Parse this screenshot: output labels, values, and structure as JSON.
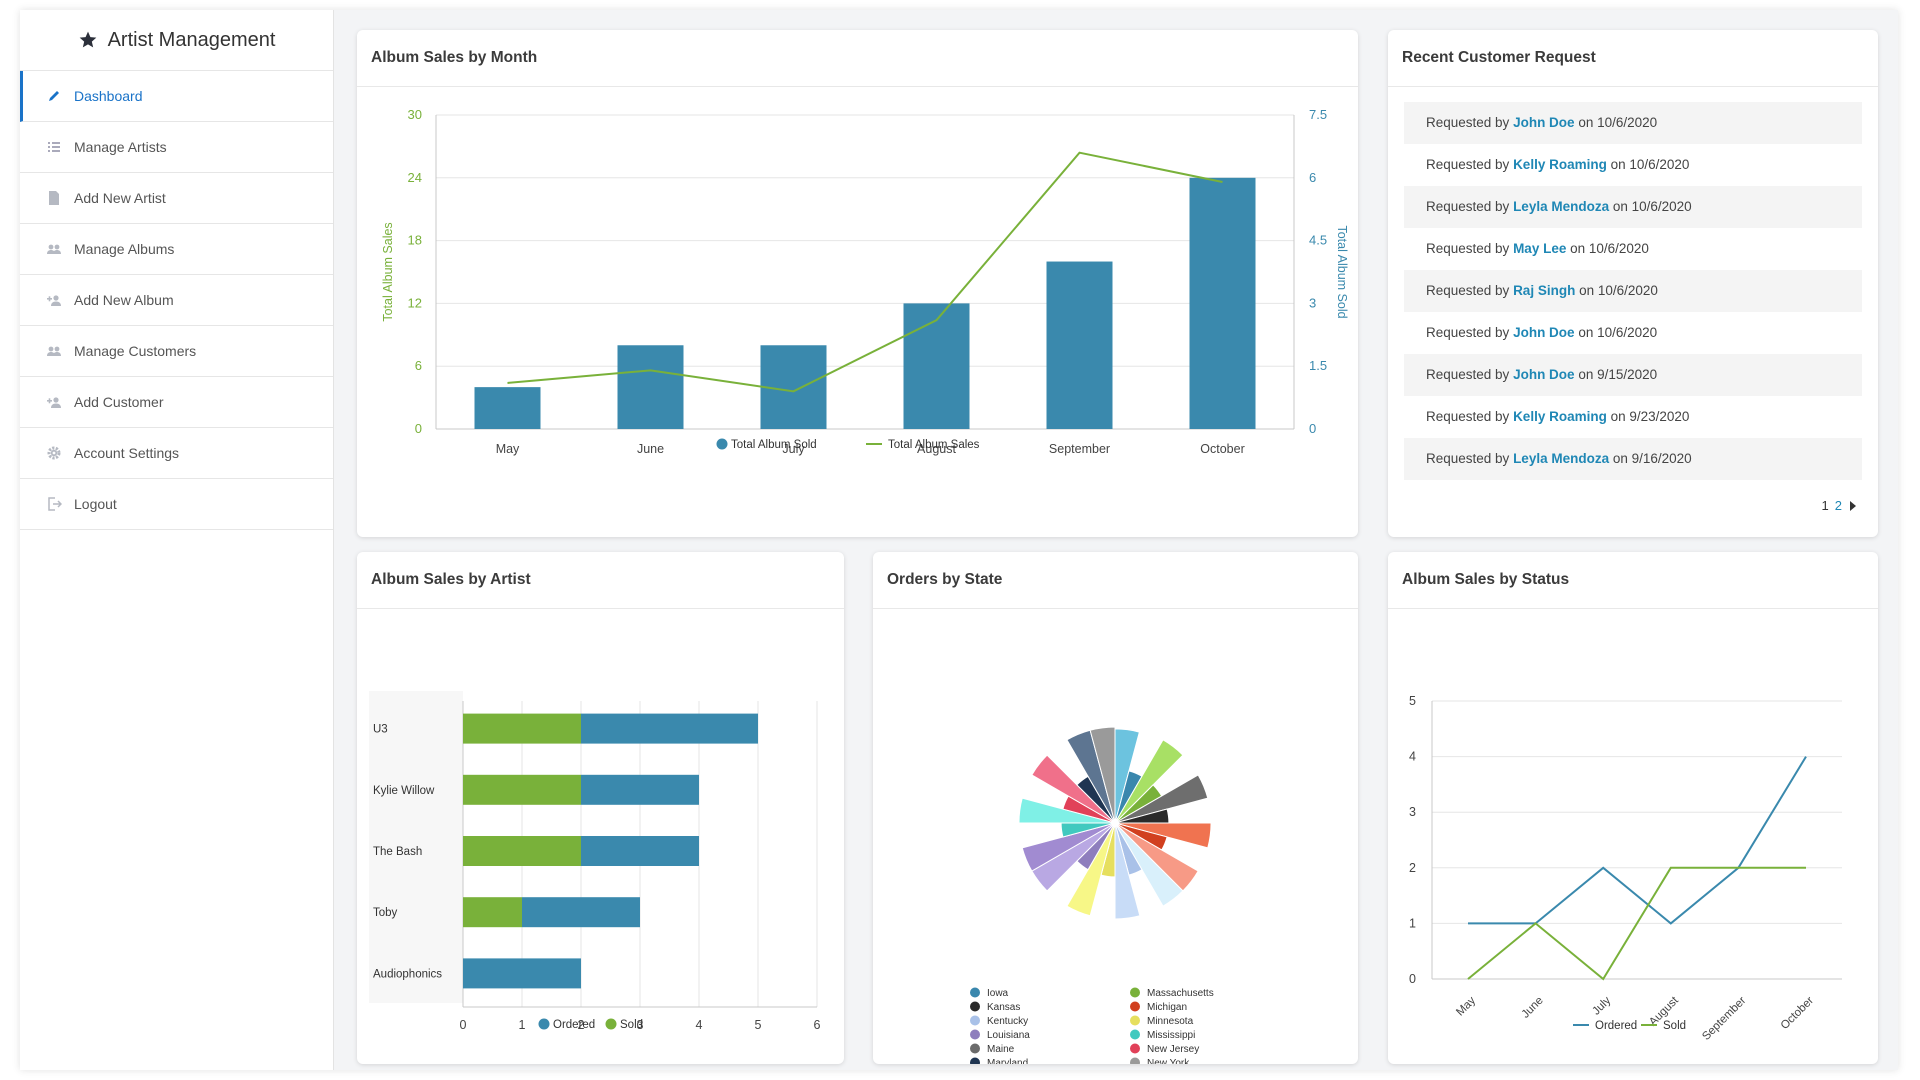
{
  "app": {
    "title": "Artist Management"
  },
  "sidebar": {
    "items": [
      {
        "label": "Dashboard",
        "icon": "pencil-icon",
        "active": true
      },
      {
        "label": "Manage Artists",
        "icon": "list-icon"
      },
      {
        "label": "Add New Artist",
        "icon": "document-icon"
      },
      {
        "label": "Manage Albums",
        "icon": "users-icon"
      },
      {
        "label": "Add New Album",
        "icon": "add-user-icon"
      },
      {
        "label": "Manage Customers",
        "icon": "users-icon"
      },
      {
        "label": "Add Customer",
        "icon": "add-user-icon"
      },
      {
        "label": "Account Settings",
        "icon": "gear-icon"
      },
      {
        "label": "Logout",
        "icon": "logout-icon"
      }
    ]
  },
  "cards": {
    "month": {
      "title": "Album Sales by Month"
    },
    "requests": {
      "title": "Recent Customer Request"
    },
    "artist": {
      "title": "Album Sales by Artist"
    },
    "state": {
      "title": "Orders by State"
    },
    "status": {
      "title": "Album Sales by Status"
    }
  },
  "requests": {
    "prefix": "Requested by",
    "on": "on",
    "items": [
      {
        "name": "John Doe",
        "date": "10/6/2020"
      },
      {
        "name": "Kelly Roaming",
        "date": "10/6/2020"
      },
      {
        "name": "Leyla Mendoza",
        "date": "10/6/2020"
      },
      {
        "name": "May Lee",
        "date": "10/6/2020"
      },
      {
        "name": "Raj Singh",
        "date": "10/6/2020"
      },
      {
        "name": "John Doe",
        "date": "10/6/2020"
      },
      {
        "name": "John Doe",
        "date": "9/15/2020"
      },
      {
        "name": "Kelly Roaming",
        "date": "9/23/2020"
      },
      {
        "name": "Leyla Mendoza",
        "date": "9/16/2020"
      }
    ],
    "pages": [
      "1",
      "2"
    ]
  },
  "colors": {
    "blue": "#3a89ad",
    "green": "#79b13a",
    "accent": "#1a73c8"
  },
  "chart_data": [
    {
      "type": "bar",
      "categories": [
        "May",
        "June",
        "July",
        "August",
        "September",
        "October"
      ],
      "series": [
        {
          "name": "Total Album Sold",
          "kind": "bar",
          "axis": "left",
          "values": [
            4,
            8,
            8,
            12,
            16,
            24
          ]
        },
        {
          "name": "Total Album Sales",
          "kind": "line",
          "axis": "right",
          "values": [
            1.1,
            1.4,
            0.9,
            2.6,
            6.6,
            5.9
          ]
        }
      ],
      "ylabel": "Total Album Sales",
      "y2label": "Total Album Sold",
      "ylim": [
        0,
        30
      ],
      "yticks": [
        0,
        6,
        12,
        18,
        24,
        30
      ],
      "y2lim": [
        0,
        7.5
      ],
      "y2ticks": [
        "0",
        "1.5",
        "3",
        "4.5",
        "6",
        "7.5"
      ],
      "legend": "bottom",
      "grid": true
    },
    {
      "type": "bar",
      "orientation": "horizontal",
      "stacked": true,
      "categories": [
        "U3",
        "Kylie Willow",
        "The Bash",
        "Toby",
        "Audiophonics"
      ],
      "series": [
        {
          "name": "Sold",
          "values": [
            2,
            2,
            2,
            1,
            0
          ]
        },
        {
          "name": "Ordered",
          "values": [
            3,
            2,
            2,
            2,
            2
          ]
        }
      ],
      "xlim": [
        0,
        6
      ],
      "xticks": [
        0,
        1,
        2,
        3,
        4,
        5,
        6
      ],
      "legend_order": [
        "Ordered",
        "Sold"
      ],
      "legend": "bottom",
      "grid": true
    },
    {
      "type": "pie",
      "style": "polar",
      "legend": [
        {
          "name": "Iowa",
          "color": "#3a87ad"
        },
        {
          "name": "Massachusetts",
          "color": "#79b13a"
        },
        {
          "name": "Kansas",
          "color": "#2a2a2a"
        },
        {
          "name": "Michigan",
          "color": "#d1401f"
        },
        {
          "name": "Kentucky",
          "color": "#a9c1e8"
        },
        {
          "name": "Minnesota",
          "color": "#e6df5e"
        },
        {
          "name": "Louisiana",
          "color": "#8e7ebd"
        },
        {
          "name": "Mississippi",
          "color": "#41c9bf"
        },
        {
          "name": "Maine",
          "color": "#6b6b6b"
        },
        {
          "name": "New Jersey",
          "color": "#e14159"
        },
        {
          "name": "Maryland",
          "color": "#1f3552"
        },
        {
          "name": "New York",
          "color": "#9a9a9a"
        }
      ]
    },
    {
      "type": "line",
      "categories": [
        "May",
        "June",
        "July",
        "August",
        "September",
        "October"
      ],
      "series": [
        {
          "name": "Ordered",
          "values": [
            1,
            1,
            2,
            1,
            2,
            4
          ]
        },
        {
          "name": "Sold",
          "values": [
            0,
            1,
            0,
            2,
            2,
            2
          ]
        }
      ],
      "ylim": [
        0,
        5
      ],
      "yticks": [
        0,
        1,
        2,
        3,
        4,
        5
      ],
      "legend": "bottom",
      "grid": true
    }
  ]
}
